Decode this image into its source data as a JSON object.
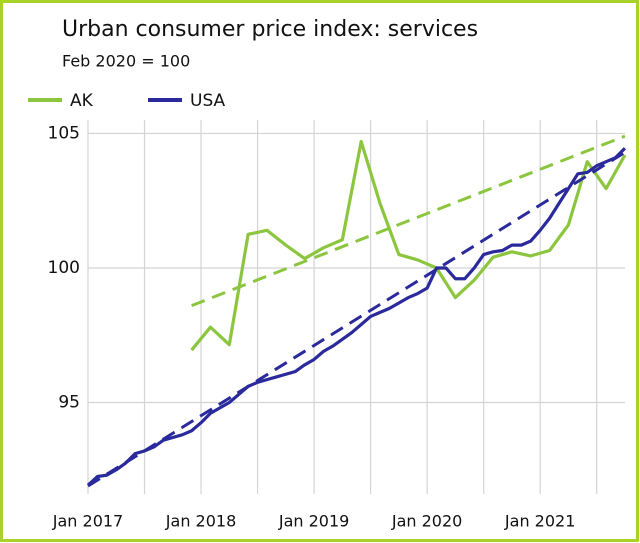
{
  "chart_data": {
    "type": "line",
    "title": "Urban consumer price index: services",
    "subtitle": "Feb 2020 = 100",
    "x": [
      "Jan 2017",
      "Feb 2017",
      "Mar 2017",
      "Apr 2017",
      "May 2017",
      "Jun 2017",
      "Jul 2017",
      "Aug 2017",
      "Sep 2017",
      "Oct 2017",
      "Nov 2017",
      "Dec 2017",
      "Jan 2018",
      "Feb 2018",
      "Mar 2018",
      "Apr 2018",
      "May 2018",
      "Jun 2018",
      "Jul 2018",
      "Aug 2018",
      "Sep 2018",
      "Oct 2018",
      "Nov 2018",
      "Dec 2018",
      "Jan 2019",
      "Feb 2019",
      "Mar 2019",
      "Apr 2019",
      "May 2019",
      "Jun 2019",
      "Jul 2019",
      "Aug 2019",
      "Sep 2019",
      "Oct 2019",
      "Nov 2019",
      "Dec 2019",
      "Jan 2020",
      "Feb 2020",
      "Mar 2020",
      "Apr 2020",
      "May 2020",
      "Jun 2020",
      "Jul 2020",
      "Aug 2020",
      "Sep 2020",
      "Oct 2020",
      "Nov 2020",
      "Dec 2020",
      "Jan 2021",
      "Feb 2021",
      "Mar 2021",
      "Apr 2021",
      "May 2021",
      "Jun 2021",
      "Jul 2021",
      "Aug 2021",
      "Sep 2021",
      "Oct 2021"
    ],
    "xticks": [
      "Jan 2017",
      "Jan 2018",
      "Jan 2019",
      "Jan 2020",
      "Jan 2021"
    ],
    "ylim": [
      91.6,
      105.5
    ],
    "yticks": [
      95,
      100,
      105
    ],
    "grid": true,
    "legend": "top-left",
    "series": [
      {
        "name": "AK",
        "color": "#8cc63e",
        "x": [
          "Dec 2017",
          "Feb 2018",
          "Apr 2018",
          "Jun 2018",
          "Aug 2018",
          "Oct 2018",
          "Dec 2018",
          "Feb 2019",
          "Apr 2019",
          "Jun 2019",
          "Aug 2019",
          "Oct 2019",
          "Dec 2019",
          "Feb 2020",
          "Apr 2020",
          "Jun 2020",
          "Aug 2020",
          "Oct 2020",
          "Dec 2020",
          "Feb 2021",
          "Apr 2021",
          "Jun 2021",
          "Aug 2021",
          "Oct 2021"
        ],
        "values": [
          96.95,
          97.8,
          97.15,
          101.25,
          101.4,
          100.85,
          100.35,
          100.75,
          101.05,
          104.7,
          102.4,
          100.5,
          100.3,
          100,
          98.9,
          99.55,
          100.4,
          100.6,
          100.45,
          100.65,
          101.6,
          103.95,
          102.95,
          104.2
        ],
        "trend": [
          98.6,
          104.9
        ]
      },
      {
        "name": "USA",
        "color": "#2a2a9c",
        "values": [
          91.93,
          92.25,
          92.3,
          92.5,
          92.75,
          93.1,
          93.2,
          93.35,
          93.6,
          93.7,
          93.8,
          93.95,
          94.25,
          94.6,
          94.8,
          95.0,
          95.3,
          95.6,
          95.75,
          95.85,
          95.95,
          96.05,
          96.15,
          96.4,
          96.6,
          96.9,
          97.1,
          97.35,
          97.6,
          97.9,
          98.2,
          98.35,
          98.5,
          98.7,
          98.9,
          99.05,
          99.25,
          100,
          100,
          99.6,
          99.6,
          100,
          100.5,
          100.6,
          100.65,
          100.85,
          100.85,
          101.0,
          101.4,
          101.85,
          102.4,
          102.95,
          103.5,
          103.55,
          103.8,
          103.95,
          104.1,
          104.45
        ],
        "trend": [
          91.9,
          104.3
        ]
      }
    ]
  }
}
